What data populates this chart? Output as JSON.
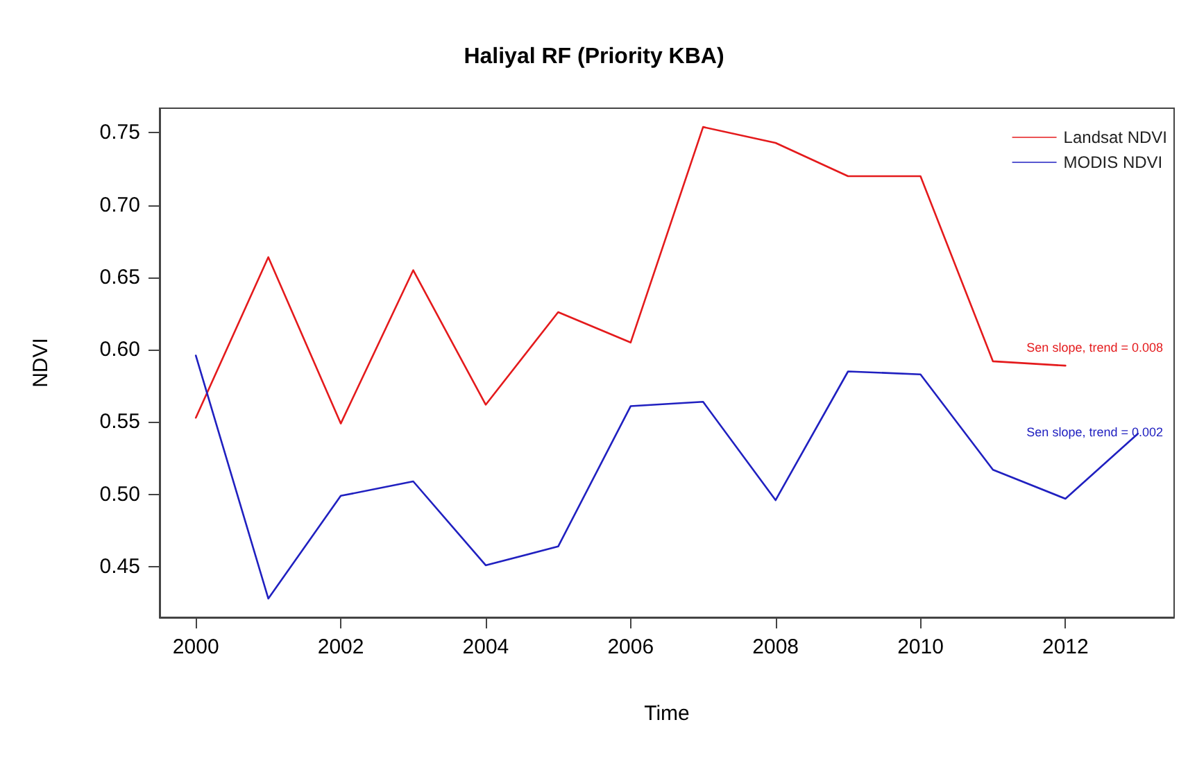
{
  "chart_data": {
    "type": "line",
    "title": "Haliyal RF (Priority KBA)",
    "xlabel": "Time",
    "ylabel": "NDVI",
    "series": [
      {
        "name": "Landsat NDVI",
        "color": "#e41a1c",
        "x": [
          2000,
          2001,
          2002,
          2003,
          2004,
          2005,
          2006,
          2007,
          2008,
          2009,
          2010,
          2011,
          2012
        ],
        "values": [
          0.553,
          0.664,
          0.549,
          0.655,
          0.562,
          0.626,
          0.605,
          0.754,
          0.743,
          0.72,
          0.72,
          0.592,
          0.589
        ]
      },
      {
        "name": "MODIS NDVI",
        "color": "#2020c0",
        "x": [
          2000,
          2001,
          2002,
          2003,
          2004,
          2005,
          2006,
          2007,
          2008,
          2009,
          2010,
          2011,
          2012,
          2013
        ],
        "values": [
          0.596,
          0.428,
          0.499,
          0.509,
          0.451,
          0.464,
          0.561,
          0.564,
          0.496,
          0.585,
          0.583,
          0.517,
          0.497,
          0.542
        ]
      }
    ],
    "annotations": [
      "Sen slope, trend = 0.008",
      "Sen slope, trend = 0.002"
    ],
    "xlim": [
      1999.5,
      2013.5
    ],
    "xticks": [
      2000,
      2002,
      2004,
      2006,
      2008,
      2010,
      2012
    ],
    "ylim": [
      0.415,
      0.767
    ],
    "yticks": [
      0.45,
      {
        "value": 0.5,
        "label": "0.50"
      },
      0.55,
      {
        "value": 0.6,
        "label": "0.60"
      },
      0.65,
      {
        "value": 0.7,
        "label": "0.70"
      },
      0.75
    ],
    "grid": false,
    "legend": "top right",
    "marker": "none",
    "line_style": "solid"
  }
}
